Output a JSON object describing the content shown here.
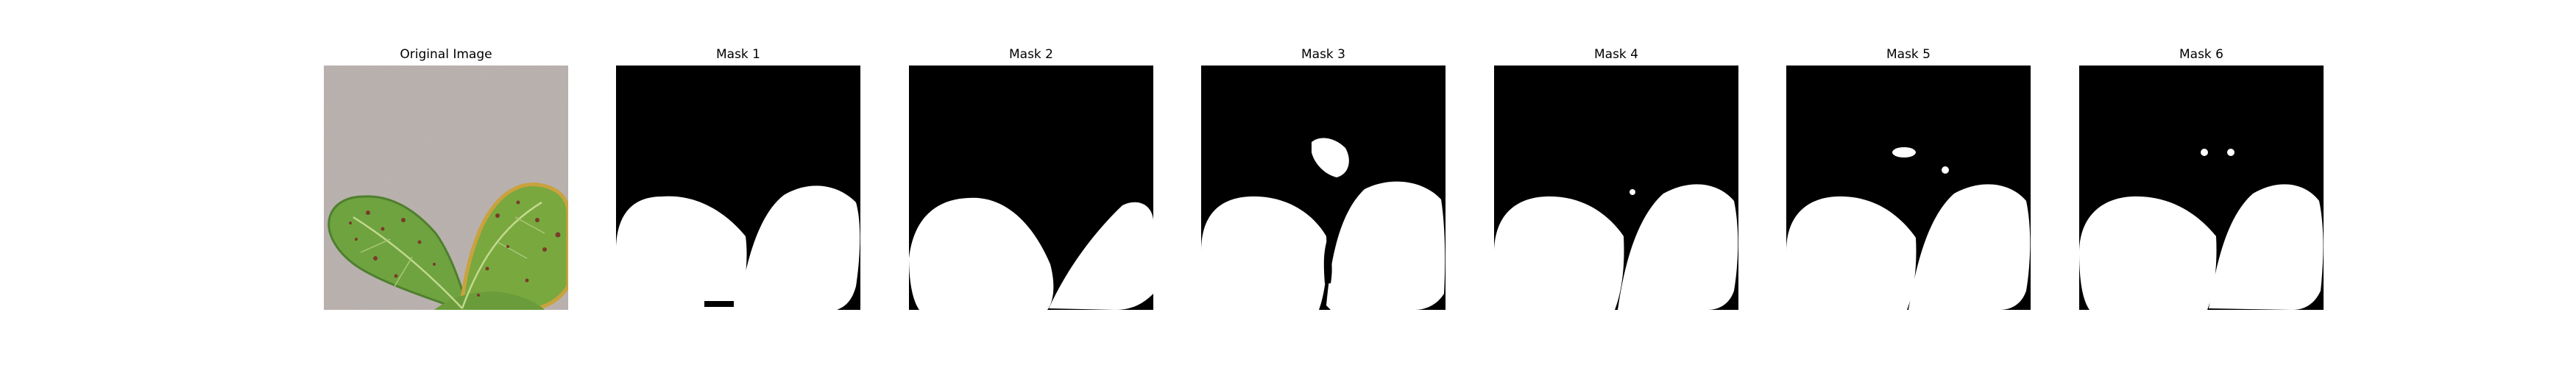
{
  "figure": {
    "panels": [
      {
        "title": "Original Image",
        "kind": "photo"
      },
      {
        "title": "Mask 1",
        "kind": "mask"
      },
      {
        "title": "Mask 2",
        "kind": "mask"
      },
      {
        "title": "Mask 3",
        "kind": "mask"
      },
      {
        "title": "Mask 4",
        "kind": "mask"
      },
      {
        "title": "Mask 5",
        "kind": "mask"
      },
      {
        "title": "Mask 6",
        "kind": "mask"
      }
    ]
  },
  "colors": {
    "background": "#ffffff",
    "mask_background": "#000000",
    "mask_foreground": "#ffffff",
    "photo_background": "#bcb4b1",
    "leaf_green": "#6fa340",
    "leaf_dark": "#4f7f2e",
    "leaf_spot": "#7a3b2a",
    "leaf_edge": "#c9a23e"
  }
}
